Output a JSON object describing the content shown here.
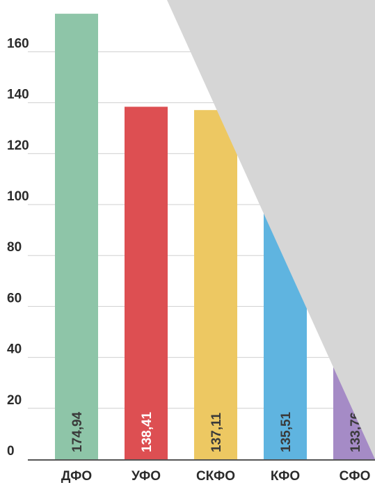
{
  "chart_data": {
    "type": "bar",
    "categories": [
      "ДФО",
      "УФО",
      "СКФО",
      "КФО",
      "СФО"
    ],
    "values": [
      174.94,
      138.41,
      137.11,
      135.51,
      133.76
    ],
    "value_labels": [
      "174,94",
      "138,41",
      "137,11",
      "135,51",
      "133,76"
    ],
    "colors": [
      "#8ec5a8",
      "#dd4f52",
      "#edc862",
      "#5fb4e0",
      "#a58bc6"
    ],
    "value_label_colors": [
      "#3a3a3a",
      "#ffffff",
      "#3a3a3a",
      "#3a3a3a",
      "#3a3a3a"
    ],
    "yticks": [
      0,
      20,
      40,
      60,
      80,
      100,
      120,
      140,
      160
    ],
    "ylim": [
      0,
      180
    ],
    "grid": true,
    "title": "",
    "xlabel": "",
    "ylabel": "",
    "overlay_color": "#d6d6d6"
  }
}
